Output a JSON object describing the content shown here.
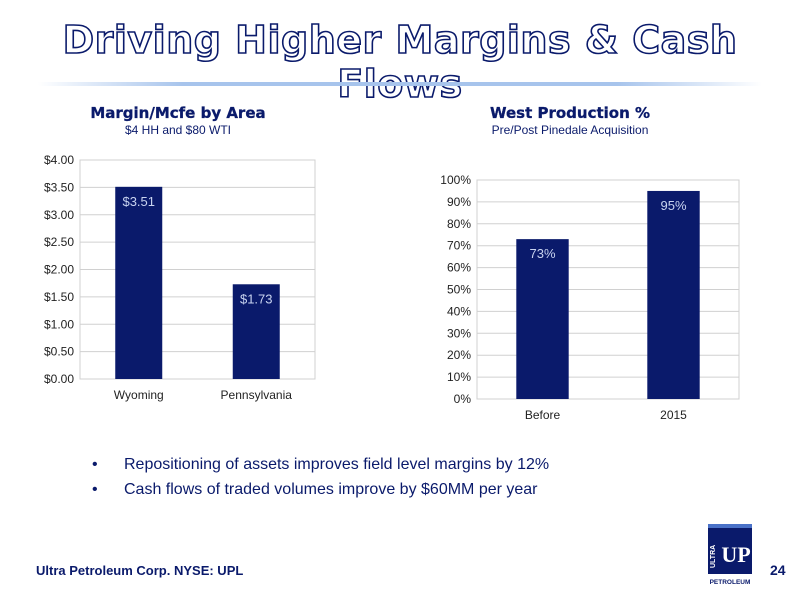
{
  "slide": {
    "title": "Driving Higher Margins & Cash Flows",
    "footer": "Ultra Petroleum Corp. NYSE: UPL",
    "page_number": "24",
    "bullets": [
      "Repositioning of assets improves field level margins by 12%",
      "Cash flows of traded volumes improve by $60MM per year"
    ],
    "logo_text": {
      "ultra": "ULTRA",
      "petroleum": "PETROLEUM",
      "mark": "UP"
    }
  },
  "colors": {
    "bar": "#0a1a6b",
    "title_outline": "#0a1a6b",
    "text": "#0a1a6b",
    "bar_label": "#c9d4f0",
    "grid": "#d0d0d0"
  },
  "chart_data": [
    {
      "type": "bar",
      "title": "Margin/Mcfe by Area",
      "subtitle": "$4 HH and $80 WTI",
      "categories": [
        "Wyoming",
        "Pennsylvania"
      ],
      "values": [
        3.51,
        1.73
      ],
      "data_labels": [
        "$3.51",
        "$1.73"
      ],
      "ylim": [
        0,
        4
      ],
      "y_ticks": [
        0,
        0.5,
        1,
        1.5,
        2,
        2.5,
        3,
        3.5,
        4
      ],
      "y_tick_labels": [
        "$0.00",
        "$0.50",
        "$1.00",
        "$1.50",
        "$2.00",
        "$2.50",
        "$3.00",
        "$3.50",
        "$4.00"
      ],
      "xlabel": "",
      "ylabel": "",
      "grid": true
    },
    {
      "type": "bar",
      "title": "West Production %",
      "subtitle": "Pre/Post Pinedale Acquisition",
      "categories": [
        "Before",
        "2015"
      ],
      "values": [
        73,
        95
      ],
      "data_labels": [
        "73%",
        "95%"
      ],
      "ylim": [
        0,
        100
      ],
      "y_ticks": [
        0,
        10,
        20,
        30,
        40,
        50,
        60,
        70,
        80,
        90,
        100
      ],
      "y_tick_labels": [
        "0%",
        "10%",
        "20%",
        "30%",
        "40%",
        "50%",
        "60%",
        "70%",
        "80%",
        "90%",
        "100%"
      ],
      "xlabel": "",
      "ylabel": "",
      "grid": true
    }
  ]
}
